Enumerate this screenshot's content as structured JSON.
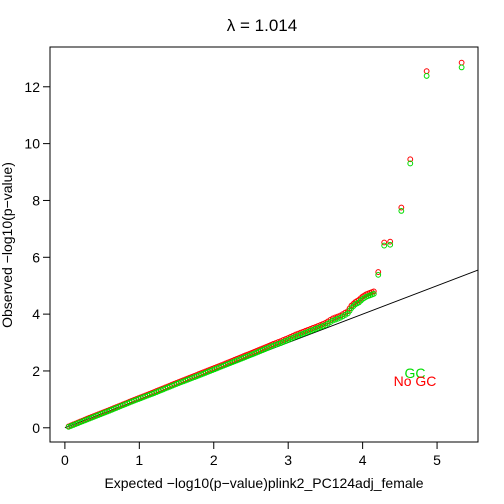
{
  "chart_data": {
    "type": "scatter",
    "title": "λ = 1.014",
    "xlabel": "Expected −log10(p−value)plink2_PC124adj_female",
    "ylabel": "Observed −log10(p−value)",
    "xlim": [
      -0.2,
      5.55
    ],
    "ylim": [
      -0.5,
      13.4
    ],
    "x_ticks": [
      0,
      1,
      2,
      3,
      4,
      5
    ],
    "y_ticks": [
      0,
      2,
      4,
      6,
      8,
      10,
      12
    ],
    "grid": false,
    "legend_position": "bottom-right",
    "reference_line": {
      "from": [
        0,
        0
      ],
      "to": [
        5.55,
        5.55
      ],
      "color": "#000000"
    },
    "series": [
      {
        "name": "No GC",
        "color": "#ff0000",
        "marker": "open-circle",
        "x": [
          0.05,
          0.3,
          0.6,
          0.9,
          1.2,
          1.5,
          1.8,
          2.1,
          2.4,
          2.6,
          2.8,
          2.9,
          3.0,
          3.1,
          3.2,
          3.3,
          3.4,
          3.5,
          3.6,
          3.7,
          3.8,
          3.85,
          3.9,
          3.95,
          4.0,
          4.05,
          4.1,
          4.15,
          4.21,
          4.29,
          4.37,
          4.52,
          4.64,
          4.86,
          5.33
        ],
        "y": [
          0.05,
          0.32,
          0.63,
          0.95,
          1.26,
          1.58,
          1.89,
          2.2,
          2.52,
          2.73,
          2.95,
          3.05,
          3.16,
          3.28,
          3.38,
          3.48,
          3.58,
          3.69,
          3.85,
          3.95,
          4.1,
          4.3,
          4.42,
          4.5,
          4.62,
          4.7,
          4.75,
          4.8,
          5.48,
          6.52,
          6.55,
          7.75,
          9.45,
          12.55,
          12.85
        ]
      },
      {
        "name": "GC",
        "color": "#00dd00",
        "marker": "open-circle",
        "x": [
          0.05,
          0.3,
          0.6,
          0.9,
          1.2,
          1.5,
          1.8,
          2.1,
          2.4,
          2.6,
          2.8,
          2.9,
          3.0,
          3.1,
          3.2,
          3.3,
          3.4,
          3.5,
          3.6,
          3.7,
          3.8,
          3.85,
          3.9,
          3.95,
          4.0,
          4.05,
          4.1,
          4.15,
          4.21,
          4.29,
          4.37,
          4.52,
          4.64,
          4.86,
          5.33
        ],
        "y": [
          0.05,
          0.31,
          0.62,
          0.94,
          1.24,
          1.56,
          1.86,
          2.17,
          2.48,
          2.69,
          2.91,
          3.0,
          3.11,
          3.23,
          3.33,
          3.43,
          3.53,
          3.63,
          3.79,
          3.89,
          4.04,
          4.23,
          4.36,
          4.43,
          4.55,
          4.63,
          4.68,
          4.73,
          5.4,
          6.43,
          6.46,
          7.65,
          9.32,
          12.4,
          12.7
        ]
      }
    ]
  }
}
